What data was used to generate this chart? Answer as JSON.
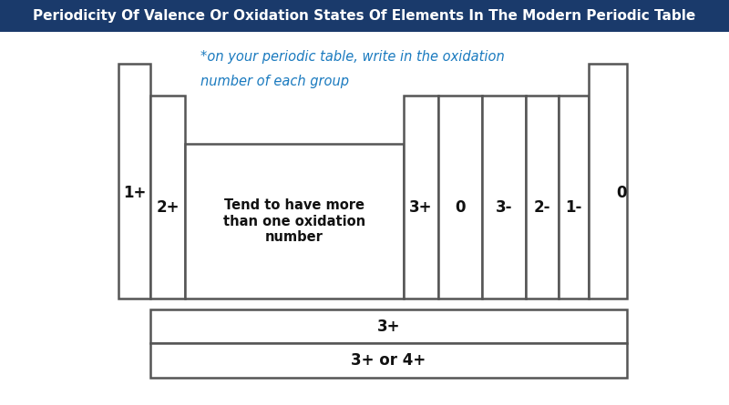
{
  "title": "Periodicity Of Valence Or Oxidation States Of Elements In The Modern Periodic Table",
  "title_bg": "#1a3a6b",
  "title_color": "#ffffff",
  "bg_color": "#ffffff",
  "annotation_line1": "*on your periodic table, write in the oxidation",
  "annotation_line2": "number of each group",
  "annotation_color": "#1a7abf",
  "lw": 1.8,
  "box_color": "#ffffff",
  "box_edge": "#555555",
  "label_color": "#111111",
  "title_fontsize": 11
}
